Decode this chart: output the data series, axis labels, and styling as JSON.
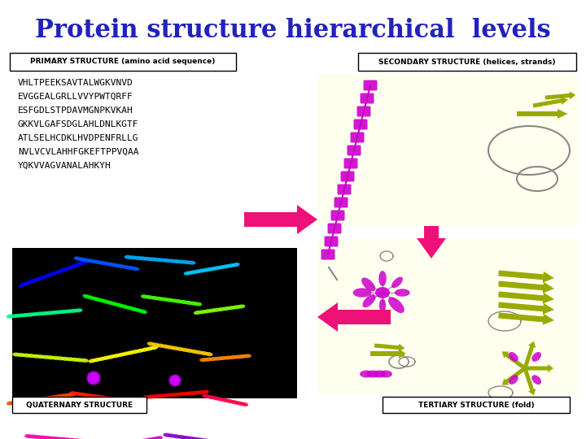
{
  "title": "Protein structure hierarchical  levels",
  "title_color": "#2222BB",
  "title_fontsize": 22,
  "bg_color": "#FFFFFF",
  "primary_label": "PRIMARY STRUCTURE (amino acid sequence)",
  "secondary_label": "SECONDARY STRUCTURE (helices, strands)",
  "quaternary_label": "QUATERNARY STRUCTURE",
  "tertiary_label": "TERTIARY STRUCTURE (fold)",
  "sequence_lines": [
    "VHLTPEEKSAVTALWGKVNVD",
    "EVGGEALGRLLVVYPWTQRFF",
    "ESFGDLSTPDAVMGNPKVKAH",
    "GKKVLGAFSDGLAHLDNLKGTF",
    "ATLSELHCDKLHVDPENFRLLG",
    "NVLVCVLAHHFGKEFTPPVQAA",
    "YQKVVAGVANALAHKYH"
  ],
  "yellow_bg": "#FFFFF0",
  "helix_color": "#CC00CC",
  "strand_color": "#99AA00",
  "arrow_hot": "#EE1177",
  "label_fontsize": 7,
  "seq_fontsize": 8
}
